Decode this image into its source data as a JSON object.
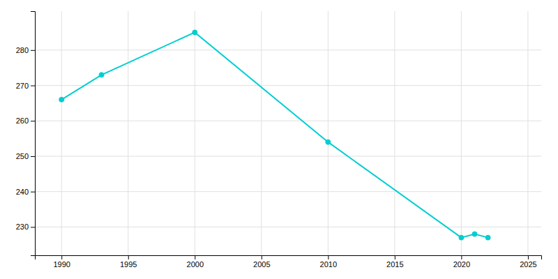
{
  "chart_data": {
    "type": "line",
    "x": [
      1990,
      1993,
      2000,
      2010,
      2020,
      2021,
      2022
    ],
    "values": [
      266,
      273,
      285,
      254,
      227,
      228,
      227
    ],
    "color": "#00CED1",
    "marker": "circle",
    "xlim": [
      1988,
      2026
    ],
    "ylim": [
      222,
      291
    ],
    "xticks": [
      1990,
      1995,
      2000,
      2005,
      2010,
      2015,
      2020,
      2025
    ],
    "yticks": [
      230,
      240,
      250,
      260,
      270,
      280
    ],
    "grid": true
  }
}
